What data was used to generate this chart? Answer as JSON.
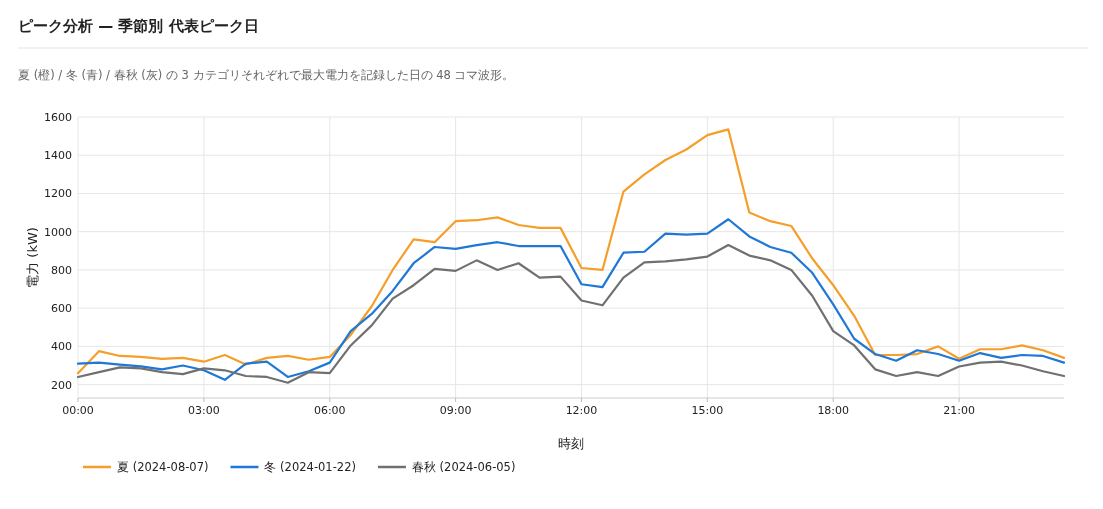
{
  "chart_data": {
    "type": "line",
    "title": "ピーク分析 — 季節別 代表ピーク日",
    "annotations": [
      "夏 (橙) / 冬 (青) / 春秋 (灰) の 3 カテゴリそれぞれで最大電力を記録した日の 48 コマ波形。"
    ],
    "xlabel": "時刻",
    "ylabel": "電力 (kW)",
    "x": [
      0,
      0.5,
      1,
      1.5,
      2,
      2.5,
      3,
      3.5,
      4,
      4.5,
      5,
      5.5,
      6,
      6.5,
      7,
      7.5,
      8,
      8.5,
      9,
      9.5,
      10,
      10.5,
      11,
      11.5,
      12,
      12.5,
      13,
      13.5,
      14,
      14.5,
      15,
      15.5,
      16,
      16.5,
      17,
      17.5,
      18,
      18.5,
      19,
      19.5,
      20,
      20.5,
      21,
      21.5,
      22,
      22.5,
      23,
      23.5
    ],
    "xlim": [
      0,
      23.5
    ],
    "xticks": [
      {
        "value": 0,
        "label": "00:00"
      },
      {
        "value": 3,
        "label": "03:00"
      },
      {
        "value": 6,
        "label": "06:00"
      },
      {
        "value": 9,
        "label": "09:00"
      },
      {
        "value": 12,
        "label": "12:00"
      },
      {
        "value": 15,
        "label": "15:00"
      },
      {
        "value": 18,
        "label": "18:00"
      },
      {
        "value": 21,
        "label": "21:00"
      }
    ],
    "ylim": [
      130,
      1600
    ],
    "yticks": [
      200,
      400,
      600,
      800,
      1000,
      1200,
      1400,
      1600
    ],
    "grid": true,
    "legend": "bottom",
    "marker": "none",
    "line_style": "solid",
    "series": [
      {
        "name": "夏 (2024-08-07)",
        "color": "#f59e2a",
        "values": [
          260,
          375,
          350,
          345,
          335,
          340,
          320,
          355,
          305,
          340,
          350,
          330,
          345,
          460,
          610,
          800,
          960,
          945,
          1055,
          1060,
          1075,
          1035,
          1020,
          1020,
          810,
          800,
          1210,
          1300,
          1375,
          1430,
          1505,
          1535,
          1100,
          1055,
          1030,
          860,
          720,
          560,
          355,
          355,
          360,
          400,
          335,
          385,
          385,
          405,
          380,
          340
        ]
      },
      {
        "name": "冬 (2024-01-22)",
        "color": "#1f77d6",
        "values": [
          310,
          315,
          305,
          295,
          280,
          300,
          275,
          225,
          310,
          320,
          240,
          270,
          315,
          480,
          570,
          690,
          835,
          920,
          910,
          930,
          945,
          925,
          925,
          925,
          725,
          710,
          890,
          895,
          990,
          985,
          990,
          1065,
          975,
          920,
          890,
          785,
          620,
          440,
          360,
          325,
          380,
          360,
          325,
          365,
          340,
          355,
          350,
          315
        ]
      },
      {
        "name": "春秋 (2024-06-05)",
        "color": "#707070",
        "values": [
          240,
          265,
          290,
          285,
          265,
          255,
          285,
          275,
          245,
          240,
          210,
          265,
          260,
          405,
          510,
          650,
          720,
          805,
          795,
          850,
          800,
          835,
          760,
          765,
          640,
          615,
          760,
          840,
          845,
          855,
          870,
          930,
          875,
          850,
          800,
          665,
          480,
          405,
          280,
          245,
          265,
          245,
          295,
          315,
          320,
          300,
          270,
          245
        ]
      }
    ]
  }
}
